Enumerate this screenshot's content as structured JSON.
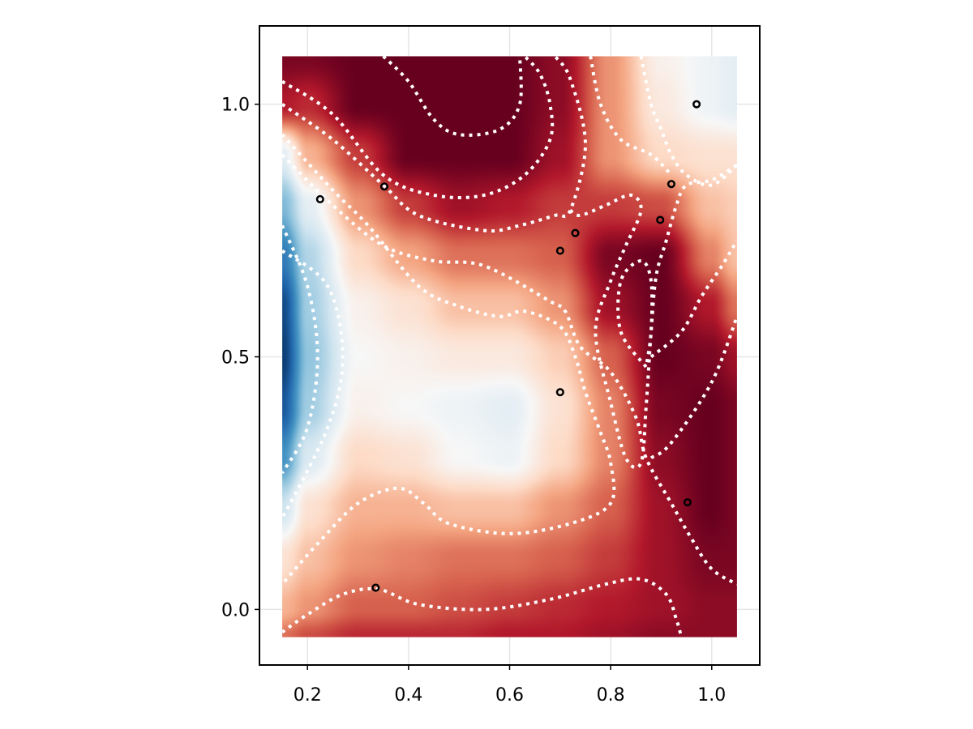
{
  "chart_data": {
    "type": "heatmap",
    "title": "",
    "xlabel": "",
    "ylabel": "",
    "xlim": [
      0.105,
      1.095
    ],
    "ylim": [
      -0.11,
      1.155
    ],
    "x_ticks": [
      {
        "value": 0.2,
        "label": "0.2"
      },
      {
        "value": 0.4,
        "label": "0.4"
      },
      {
        "value": 0.6,
        "label": "0.6"
      },
      {
        "value": 0.8,
        "label": "0.8"
      },
      {
        "value": 1.0,
        "label": "1.0"
      }
    ],
    "y_ticks": [
      {
        "value": 0.0,
        "label": "0.0"
      },
      {
        "value": 0.5,
        "label": "0.5"
      },
      {
        "value": 1.0,
        "label": "1.0"
      }
    ],
    "grid": true,
    "field_extent": {
      "x": [
        0.15,
        1.05
      ],
      "y": [
        -0.055,
        1.095
      ]
    },
    "colormap": "RdBu",
    "colormap_stops": [
      "#053061",
      "#2166ac",
      "#4393c3",
      "#92c5de",
      "#d1e5f0",
      "#f7f7f7",
      "#fddbc7",
      "#f4a582",
      "#d6604d",
      "#b2182b",
      "#67001f"
    ],
    "value_range": [
      -1.0,
      1.0
    ],
    "field_grid": {
      "x": [
        0.15,
        0.2,
        0.3,
        0.4,
        0.5,
        0.6,
        0.7,
        0.8,
        0.9,
        1.0,
        1.05
      ],
      "y": [
        1.095,
        1.0,
        0.9,
        0.8,
        0.7,
        0.6,
        0.5,
        0.4,
        0.3,
        0.2,
        0.1,
        0.0,
        -0.055
      ],
      "values": [
        [
          0.95,
          0.95,
          1.0,
          1.0,
          1.0,
          1.0,
          0.9,
          0.45,
          0.05,
          -0.05,
          -0.1
        ],
        [
          0.8,
          0.75,
          1.0,
          1.0,
          1.0,
          1.0,
          0.9,
          0.45,
          0.1,
          -0.05,
          -0.1
        ],
        [
          -0.1,
          0.35,
          0.7,
          1.0,
          1.0,
          1.0,
          0.85,
          0.45,
          0.2,
          0.15,
          0.15
        ],
        [
          -0.45,
          -0.1,
          0.45,
          0.7,
          0.85,
          0.8,
          0.7,
          0.7,
          0.65,
          0.3,
          0.25
        ],
        [
          -0.7,
          -0.3,
          0.2,
          0.4,
          0.55,
          0.55,
          0.6,
          0.95,
          1.0,
          0.5,
          0.3
        ],
        [
          -0.9,
          -0.35,
          0.05,
          0.15,
          0.3,
          0.3,
          0.45,
          0.85,
          1.0,
          0.8,
          0.55
        ],
        [
          -0.95,
          -0.4,
          0.0,
          0.05,
          0.1,
          0.1,
          0.25,
          0.6,
          1.0,
          0.95,
          0.85
        ],
        [
          -0.85,
          -0.35,
          0.05,
          0.0,
          -0.05,
          -0.1,
          0.15,
          0.5,
          0.95,
          1.0,
          0.95
        ],
        [
          -0.6,
          -0.15,
          0.2,
          0.15,
          0.0,
          -0.05,
          0.2,
          0.5,
          0.9,
          1.0,
          0.95
        ],
        [
          -0.2,
          0.15,
          0.35,
          0.35,
          0.3,
          0.3,
          0.45,
          0.6,
          0.85,
          1.0,
          0.95
        ],
        [
          0.15,
          0.3,
          0.45,
          0.5,
          0.55,
          0.55,
          0.6,
          0.7,
          0.85,
          0.95,
          0.95
        ],
        [
          0.35,
          0.45,
          0.6,
          0.6,
          0.65,
          0.7,
          0.75,
          0.8,
          0.85,
          0.9,
          0.9
        ],
        [
          0.55,
          0.65,
          0.75,
          0.75,
          0.75,
          0.8,
          0.8,
          0.85,
          0.9,
          0.9,
          0.9
        ]
      ]
    },
    "contours": [
      [
        [
          0.35,
          1.095
        ],
        [
          0.4,
          1.045
        ],
        [
          0.45,
          0.97
        ],
        [
          0.5,
          0.94
        ],
        [
          0.58,
          0.95
        ],
        [
          0.62,
          1.0
        ],
        [
          0.62,
          1.095
        ]
      ],
      [
        [
          0.15,
          1.045
        ],
        [
          0.25,
          0.98
        ],
        [
          0.35,
          0.86
        ],
        [
          0.45,
          0.82
        ],
        [
          0.55,
          0.82
        ],
        [
          0.63,
          0.86
        ],
        [
          0.68,
          0.93
        ],
        [
          0.68,
          1.0
        ],
        [
          0.66,
          1.06
        ],
        [
          0.63,
          1.095
        ]
      ],
      [
        [
          0.15,
          1.0
        ],
        [
          0.25,
          0.93
        ],
        [
          0.35,
          0.84
        ],
        [
          0.42,
          0.78
        ],
        [
          0.55,
          0.75
        ],
        [
          0.62,
          0.76
        ],
        [
          0.69,
          0.78
        ],
        [
          0.72,
          0.79
        ],
        [
          0.75,
          0.92
        ],
        [
          0.72,
          1.05
        ],
        [
          0.69,
          1.095
        ]
      ],
      [
        [
          0.15,
          0.94
        ],
        [
          0.25,
          0.83
        ],
        [
          0.32,
          0.76
        ],
        [
          0.42,
          0.64
        ],
        [
          0.5,
          0.6
        ],
        [
          0.58,
          0.58
        ],
        [
          0.63,
          0.59
        ],
        [
          0.7,
          0.56
        ],
        [
          0.73,
          0.5
        ],
        [
          0.75,
          0.43
        ],
        [
          0.78,
          0.35
        ],
        [
          0.8,
          0.29
        ],
        [
          0.8,
          0.21
        ],
        [
          0.72,
          0.17
        ],
        [
          0.6,
          0.15
        ],
        [
          0.48,
          0.17
        ],
        [
          0.43,
          0.21
        ],
        [
          0.38,
          0.24
        ],
        [
          0.3,
          0.21
        ],
        [
          0.22,
          0.13
        ],
        [
          0.15,
          0.05
        ]
      ],
      [
        [
          0.15,
          0.9
        ],
        [
          0.25,
          0.8
        ],
        [
          0.35,
          0.72
        ],
        [
          0.45,
          0.69
        ],
        [
          0.55,
          0.68
        ],
        [
          0.68,
          0.61
        ],
        [
          0.71,
          0.59
        ],
        [
          0.74,
          0.52
        ],
        [
          0.8,
          0.47
        ],
        [
          0.85,
          0.38
        ],
        [
          0.87,
          0.3
        ],
        [
          0.92,
          0.21
        ],
        [
          0.96,
          0.14
        ],
        [
          1.0,
          0.08
        ],
        [
          1.05,
          0.05
        ]
      ],
      [
        [
          0.15,
          0.76
        ],
        [
          0.2,
          0.64
        ],
        [
          0.22,
          0.5
        ],
        [
          0.2,
          0.36
        ],
        [
          0.15,
          0.27
        ]
      ],
      [
        [
          0.15,
          0.71
        ],
        [
          0.24,
          0.64
        ],
        [
          0.27,
          0.5
        ],
        [
          0.24,
          0.36
        ],
        [
          0.15,
          0.18
        ]
      ],
      [
        [
          0.15,
          -0.045
        ],
        [
          0.2,
          -0.01
        ],
        [
          0.27,
          0.03
        ],
        [
          0.34,
          0.04
        ],
        [
          0.42,
          0.01
        ],
        [
          0.55,
          0.0
        ],
        [
          0.68,
          0.02
        ],
        [
          0.79,
          0.05
        ],
        [
          0.86,
          0.06
        ],
        [
          0.91,
          0.03
        ],
        [
          0.93,
          -0.02
        ],
        [
          0.94,
          -0.055
        ]
      ],
      [
        [
          0.72,
          0.79
        ],
        [
          0.74,
          0.78
        ],
        [
          0.79,
          0.8
        ],
        [
          0.84,
          0.82
        ],
        [
          0.86,
          0.79
        ],
        [
          0.83,
          0.72
        ],
        [
          0.8,
          0.65
        ],
        [
          0.77,
          0.55
        ],
        [
          0.8,
          0.41
        ],
        [
          0.83,
          0.3
        ],
        [
          0.86,
          0.29
        ],
        [
          0.87,
          0.4
        ],
        [
          0.88,
          0.55
        ],
        [
          0.89,
          0.66
        ],
        [
          0.91,
          0.73
        ],
        [
          0.93,
          0.8
        ],
        [
          0.95,
          0.84
        ],
        [
          1.0,
          0.85
        ],
        [
          1.05,
          0.88
        ]
      ],
      [
        [
          0.87,
          0.48
        ],
        [
          0.82,
          0.55
        ],
        [
          0.82,
          0.65
        ],
        [
          0.86,
          0.69
        ],
        [
          0.88,
          0.65
        ],
        [
          0.88,
          0.55
        ],
        [
          0.87,
          0.48
        ]
      ],
      [
        [
          0.88,
          0.5
        ],
        [
          0.94,
          0.55
        ],
        [
          0.98,
          0.62
        ],
        [
          1.02,
          0.68
        ],
        [
          1.05,
          0.73
        ]
      ],
      [
        [
          0.88,
          0.3
        ],
        [
          0.92,
          0.33
        ],
        [
          1.0,
          0.45
        ],
        [
          1.05,
          0.58
        ]
      ],
      [
        [
          0.86,
          1.095
        ],
        [
          0.88,
          1.0
        ],
        [
          0.9,
          0.95
        ],
        [
          0.92,
          0.9
        ],
        [
          0.95,
          0.86
        ],
        [
          1.0,
          0.84
        ],
        [
          1.05,
          0.88
        ]
      ],
      [
        [
          0.76,
          1.095
        ],
        [
          0.78,
          1.0
        ],
        [
          0.82,
          0.93
        ],
        [
          0.88,
          0.9
        ],
        [
          0.92,
          0.86
        ]
      ]
    ],
    "points": [
      {
        "x": 0.97,
        "y": 1.0
      },
      {
        "x": 0.225,
        "y": 0.812
      },
      {
        "x": 0.352,
        "y": 0.837
      },
      {
        "x": 0.92,
        "y": 0.842
      },
      {
        "x": 0.898,
        "y": 0.771
      },
      {
        "x": 0.73,
        "y": 0.745
      },
      {
        "x": 0.7,
        "y": 0.71
      },
      {
        "x": 0.7,
        "y": 0.43
      },
      {
        "x": 0.952,
        "y": 0.212
      },
      {
        "x": 0.335,
        "y": 0.043
      }
    ]
  }
}
